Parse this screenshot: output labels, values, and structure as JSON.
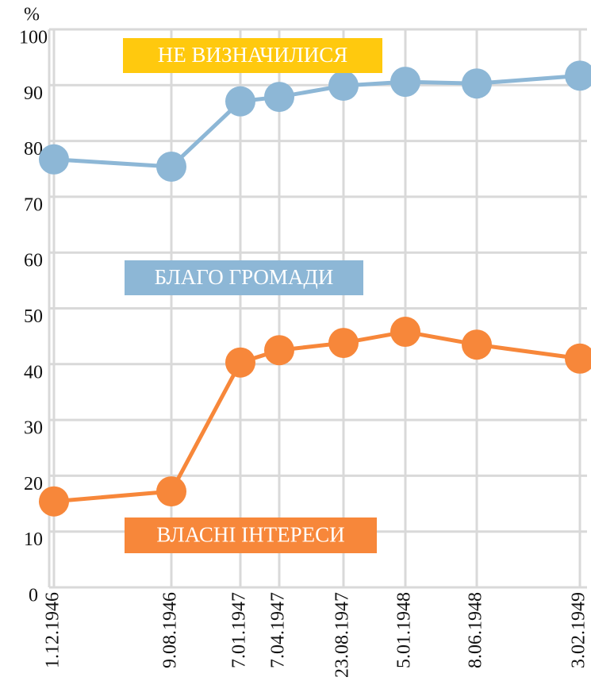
{
  "chart_data": {
    "type": "line",
    "y_unit_label": "%",
    "x": [
      "1.12.1946",
      "9.08.1946",
      "7.01.1947",
      "7.04.1947",
      "23.08.1947",
      "5.01.1948",
      "8.06.1948",
      "3.02.1949"
    ],
    "series": [
      {
        "name": "БЛАГО ГРОМАДИ",
        "color": "#8db7d6",
        "values": [
          76.7,
          75.4,
          87.1,
          87.9,
          89.9,
          90.6,
          90.3,
          91.7
        ]
      },
      {
        "name": "ВЛАСНІ ІНТЕРЕСИ",
        "color": "#f7873a",
        "values": [
          15.4,
          17.2,
          40.3,
          42.5,
          43.8,
          45.8,
          43.5,
          41.0
        ]
      }
    ],
    "annotations": [
      {
        "text": "НЕ ВИЗНАЧИЛИСЯ",
        "color": "#ffc90e"
      }
    ],
    "ylim": [
      0,
      100
    ],
    "yticks": [
      0,
      10,
      20,
      30,
      40,
      50,
      60,
      70,
      80,
      90,
      100
    ],
    "grid": true
  }
}
